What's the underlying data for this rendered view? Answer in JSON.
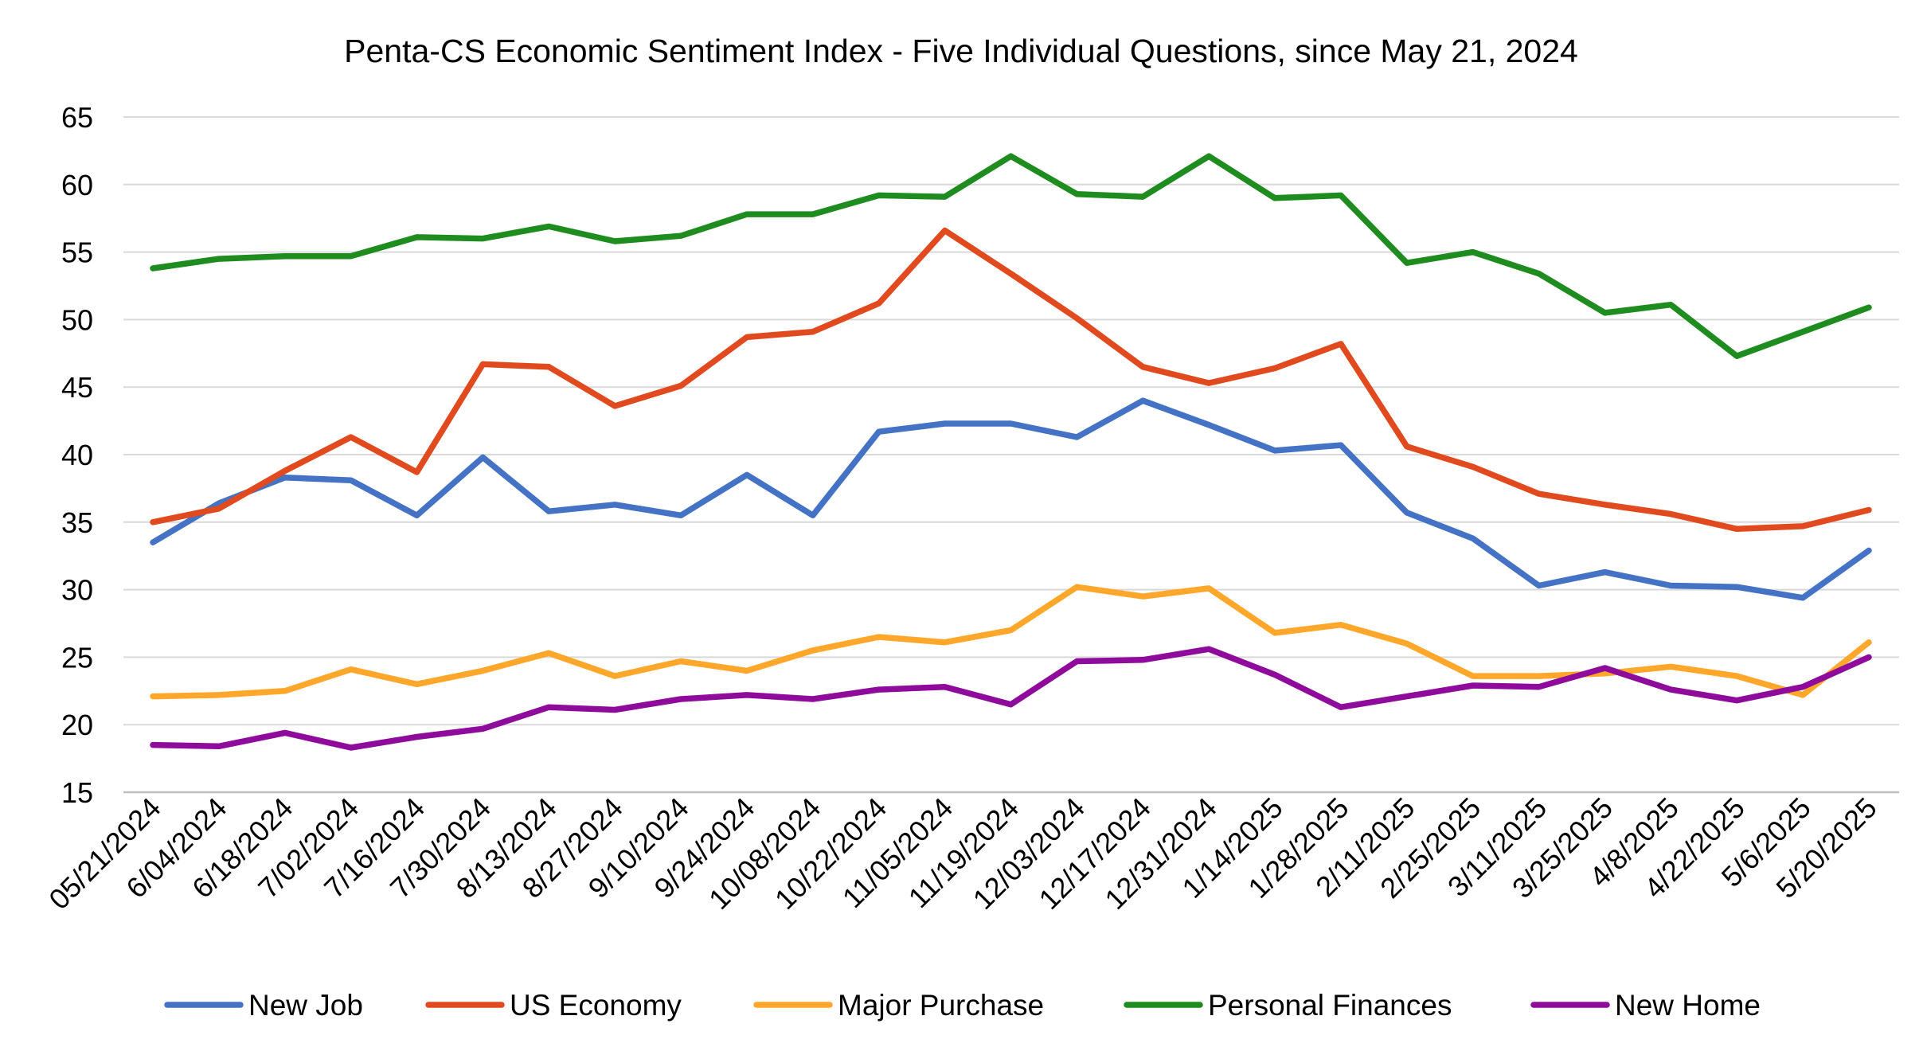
{
  "chart_data": {
    "type": "line",
    "title": "Penta-CS Economic Sentiment Index - Five Individual Questions, since May 21, 2024",
    "xlabel": "",
    "ylabel": "",
    "ylim": [
      15,
      65
    ],
    "yticks": [
      15,
      20,
      25,
      30,
      35,
      40,
      45,
      50,
      55,
      60,
      65
    ],
    "grid": true,
    "legend_position": "bottom",
    "categories": [
      "05/21/2024",
      "6/04/2024",
      "6/18/2024",
      "7/02/2024",
      "7/16/2024",
      "7/30/2024",
      "8/13/2024",
      "8/27/2024",
      "9/10/2024",
      "9/24/2024",
      "10/08/2024",
      "10/22/2024",
      "11/05/2024",
      "11/19/2024",
      "12/03/2024",
      "12/17/2024",
      "12/31/2024",
      "1/14/2025",
      "1/28/2025",
      "2/11/2025",
      "2/25/2025",
      "3/11/2025",
      "3/25/2025",
      "4/8/2025",
      "4/22/2025",
      "5/6/2025",
      "5/20/2025"
    ],
    "series": [
      {
        "name": "New Job",
        "color": "#4472C4",
        "values": [
          33.5,
          36.4,
          38.3,
          38.1,
          35.5,
          39.8,
          35.8,
          36.3,
          35.5,
          38.5,
          35.5,
          41.7,
          42.3,
          42.3,
          41.3,
          44.0,
          42.2,
          40.3,
          40.7,
          35.7,
          33.8,
          30.3,
          31.3,
          30.3,
          30.2,
          29.4,
          32.9
        ]
      },
      {
        "name": "US Economy",
        "color": "#E04A1E",
        "values": [
          35.0,
          36.0,
          38.8,
          41.3,
          38.7,
          46.7,
          46.5,
          43.6,
          45.1,
          48.7,
          49.1,
          51.2,
          56.6,
          53.4,
          50.1,
          46.5,
          45.3,
          46.4,
          48.2,
          40.6,
          39.1,
          37.1,
          36.3,
          35.6,
          34.5,
          34.7,
          35.9
        ]
      },
      {
        "name": "Major Purchase",
        "color": "#FFA72B",
        "values": [
          22.1,
          22.2,
          22.5,
          24.1,
          23.0,
          24.0,
          25.3,
          23.6,
          24.7,
          24.0,
          25.5,
          26.5,
          26.1,
          27.0,
          30.2,
          29.5,
          30.1,
          26.8,
          27.4,
          26.0,
          23.6,
          23.6,
          23.8,
          24.3,
          23.6,
          22.2,
          26.1
        ]
      },
      {
        "name": "Personal Finances",
        "color": "#1E8C1E",
        "values": [
          53.8,
          54.5,
          54.7,
          54.7,
          56.1,
          56.0,
          56.9,
          55.8,
          56.2,
          57.8,
          57.8,
          59.2,
          59.1,
          62.1,
          59.3,
          59.1,
          62.1,
          59.0,
          59.2,
          54.2,
          55.0,
          53.4,
          50.5,
          51.1,
          47.3,
          49.1,
          50.9
        ]
      },
      {
        "name": "New Home",
        "color": "#8E0B9C",
        "values": [
          18.5,
          18.4,
          19.4,
          18.3,
          19.1,
          19.7,
          21.3,
          21.1,
          21.9,
          22.2,
          21.9,
          22.6,
          22.8,
          21.5,
          24.7,
          24.8,
          25.6,
          23.7,
          21.3,
          22.1,
          22.9,
          22.8,
          24.2,
          22.6,
          21.8,
          22.8,
          25.0
        ]
      }
    ]
  }
}
